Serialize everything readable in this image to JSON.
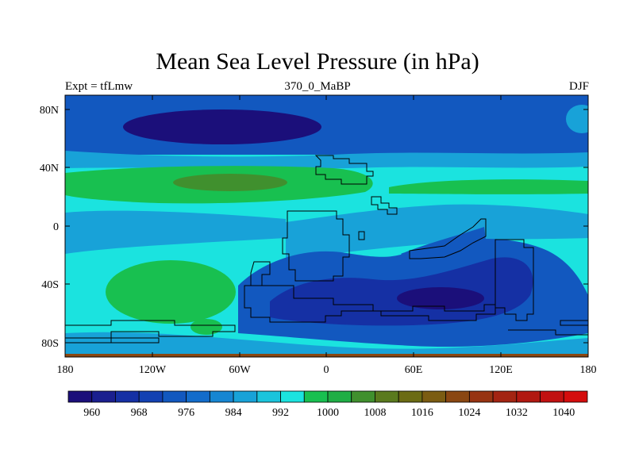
{
  "header": {
    "title": "Mean Sea Level Pressure (in hPa)",
    "left_label": "Expt = tfLmw",
    "center_label": "370_0_MaBP",
    "right_label": "DJF"
  },
  "axes": {
    "lat_ticks": [
      "80N",
      "40N",
      "0",
      "40S",
      "80S"
    ],
    "lon_ticks": [
      "180",
      "120W",
      "60W",
      "0",
      "60E",
      "120E",
      "180"
    ]
  },
  "colorbar": {
    "labels": [
      "960",
      "968",
      "976",
      "984",
      "992",
      "1000",
      "1008",
      "1016",
      "1024",
      "1032",
      "1040"
    ],
    "colors": [
      "#1b0f7a",
      "#1a1f8f",
      "#1530a4",
      "#1341b2",
      "#1258bf",
      "#136ccb",
      "#1686d2",
      "#18a2d8",
      "#1ac4dc",
      "#1be3df",
      "#18c050",
      "#1fae45",
      "#40902e",
      "#5a7a1e",
      "#6b6b14",
      "#7b5c12",
      "#8a4712",
      "#973412",
      "#a32412",
      "#b11811",
      "#c11111",
      "#d40d0d"
    ]
  },
  "palette": {
    "band_980": "#1b0f7a",
    "band_984": "#1530a4",
    "band_988": "#1258bf",
    "band_992": "#18a2d8",
    "band_996": "#1be3df",
    "band_1004": "#18c050",
    "band_1012": "#40902e",
    "coast": "#000000"
  }
}
